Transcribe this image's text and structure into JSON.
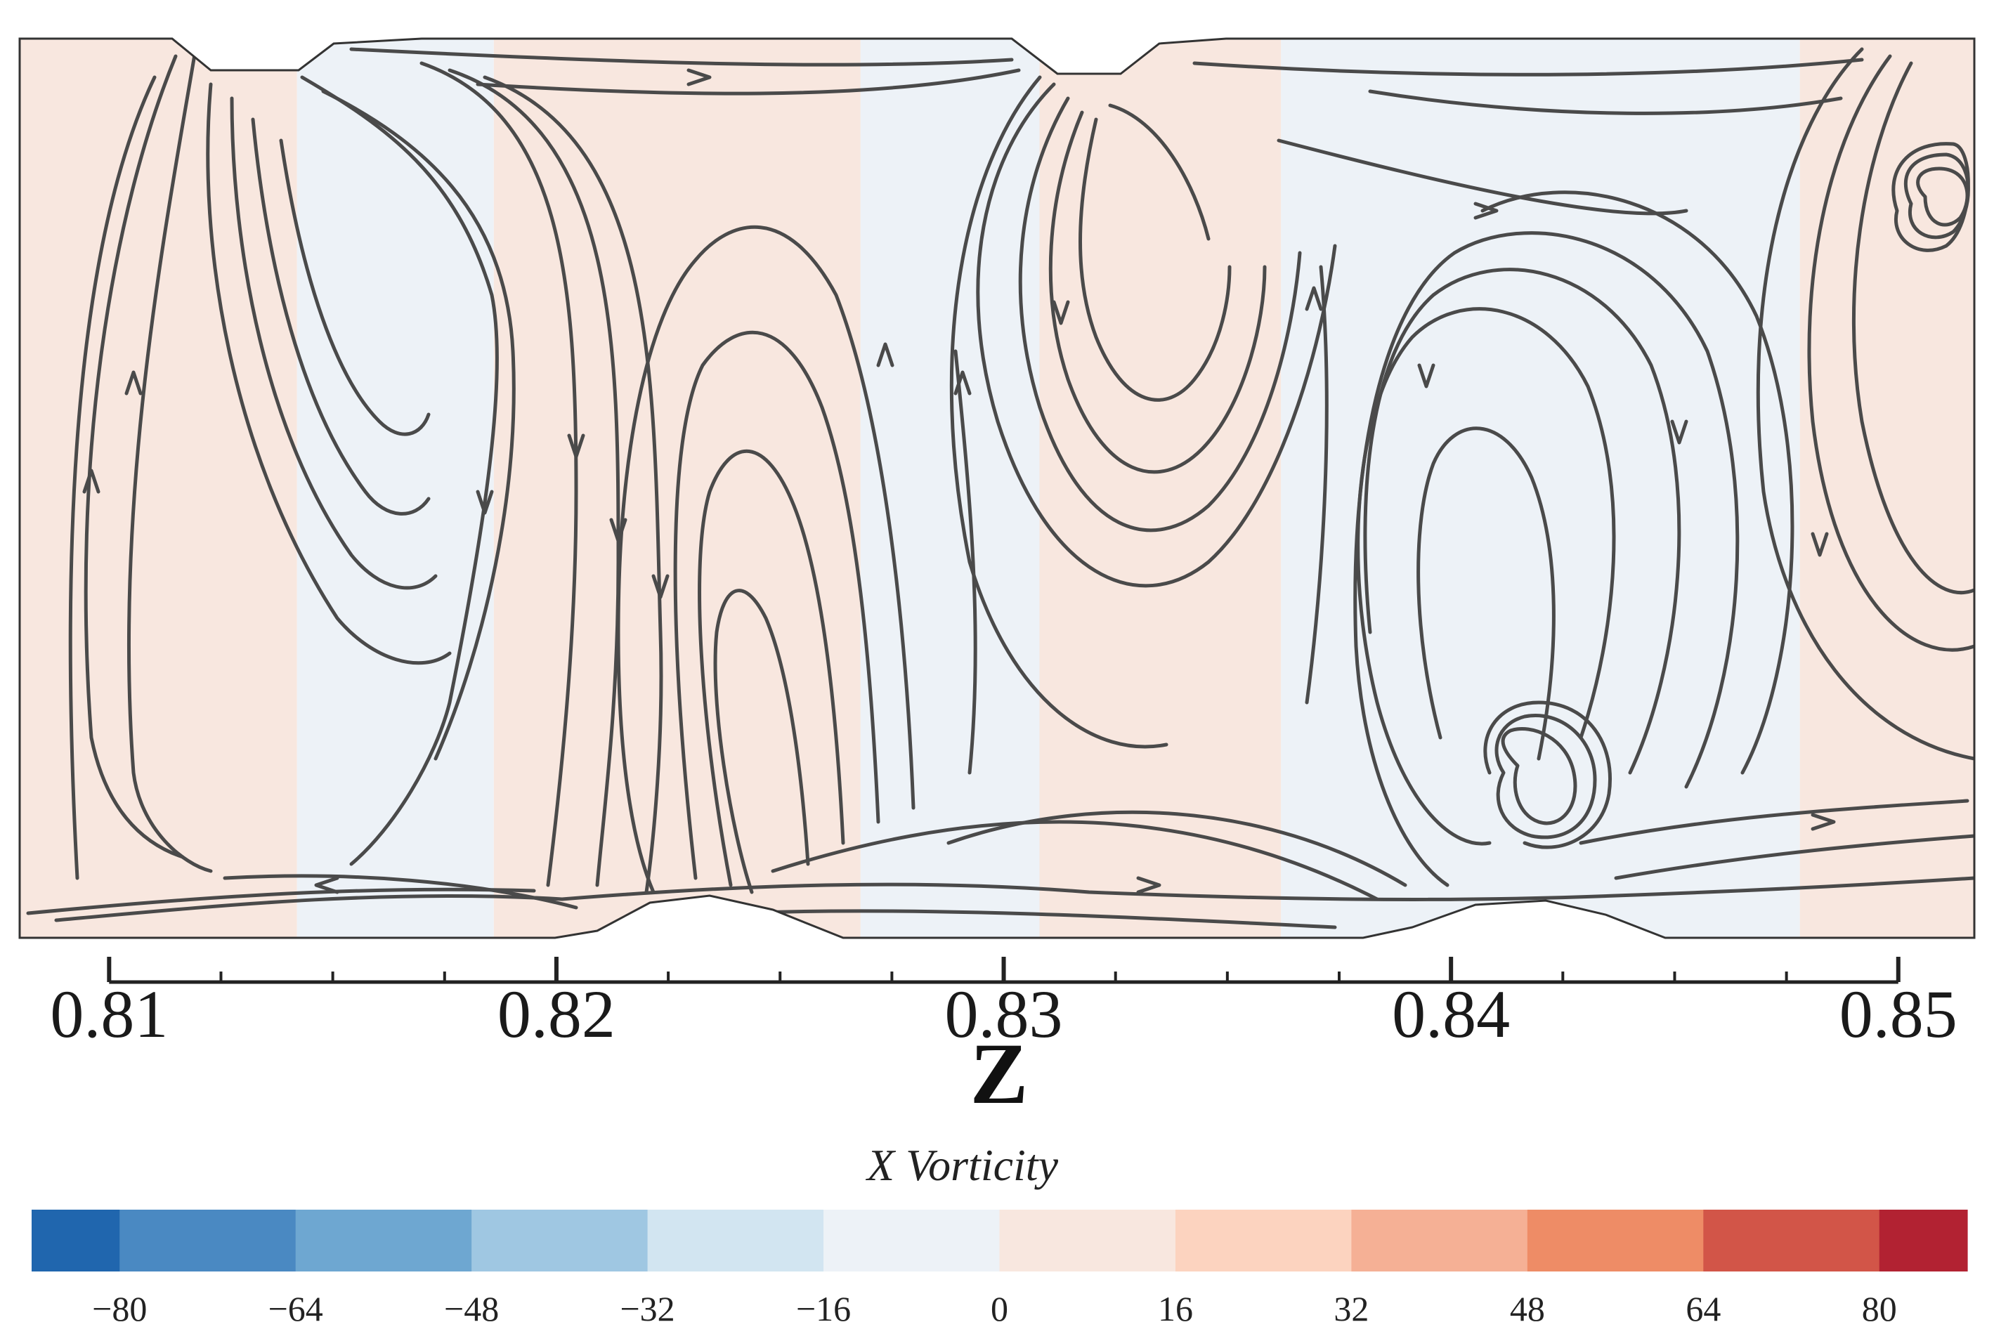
{
  "chart_data": {
    "type": "heatmap",
    "title": "",
    "xlabel": "Z",
    "ylabel": "",
    "xlim": [
      0.808,
      0.8517
    ],
    "x_ticks": [
      "0.81",
      "0.82",
      "0.83",
      "0.84",
      "0.85"
    ],
    "x_tick_values": [
      0.81,
      0.82,
      0.83,
      0.84,
      0.85
    ],
    "x_minor_step": 0.0025,
    "overlay": "streamlines",
    "colorbar": {
      "title": "X Vorticity",
      "range": [
        -88,
        88
      ],
      "levels": [
        -88,
        -80,
        -64,
        -48,
        -32,
        -16,
        0,
        16,
        32,
        48,
        64,
        80,
        88
      ],
      "colors": [
        "#2066ae",
        "#4a89c2",
        "#6ea7d1",
        "#9fc7e2",
        "#d2e5f1",
        "#edf2f7",
        "#f8e7df",
        "#fcd3bf",
        "#f5b095",
        "#ee8c66",
        "#d25548",
        "#b22232"
      ],
      "tick_labels": [
        "−80",
        "−64",
        "−48",
        "−32",
        "−16",
        "0",
        "16",
        "32",
        "48",
        "64",
        "80"
      ],
      "tick_values": [
        -80,
        -64,
        -48,
        -32,
        -16,
        0,
        16,
        32,
        48,
        64,
        80
      ]
    },
    "vortex_cells": [
      {
        "z_start": 0.808,
        "z_end": 0.8142,
        "sign": "positive"
      },
      {
        "z_start": 0.8142,
        "z_end": 0.8186,
        "sign": "negative"
      },
      {
        "z_start": 0.8186,
        "z_end": 0.8268,
        "sign": "positive"
      },
      {
        "z_start": 0.8268,
        "z_end": 0.8308,
        "sign": "negative"
      },
      {
        "z_start": 0.8308,
        "z_end": 0.8362,
        "sign": "positive"
      },
      {
        "z_start": 0.8362,
        "z_end": 0.8478,
        "sign": "negative"
      },
      {
        "z_start": 0.8478,
        "z_end": 0.8517,
        "sign": "positive"
      }
    ]
  }
}
